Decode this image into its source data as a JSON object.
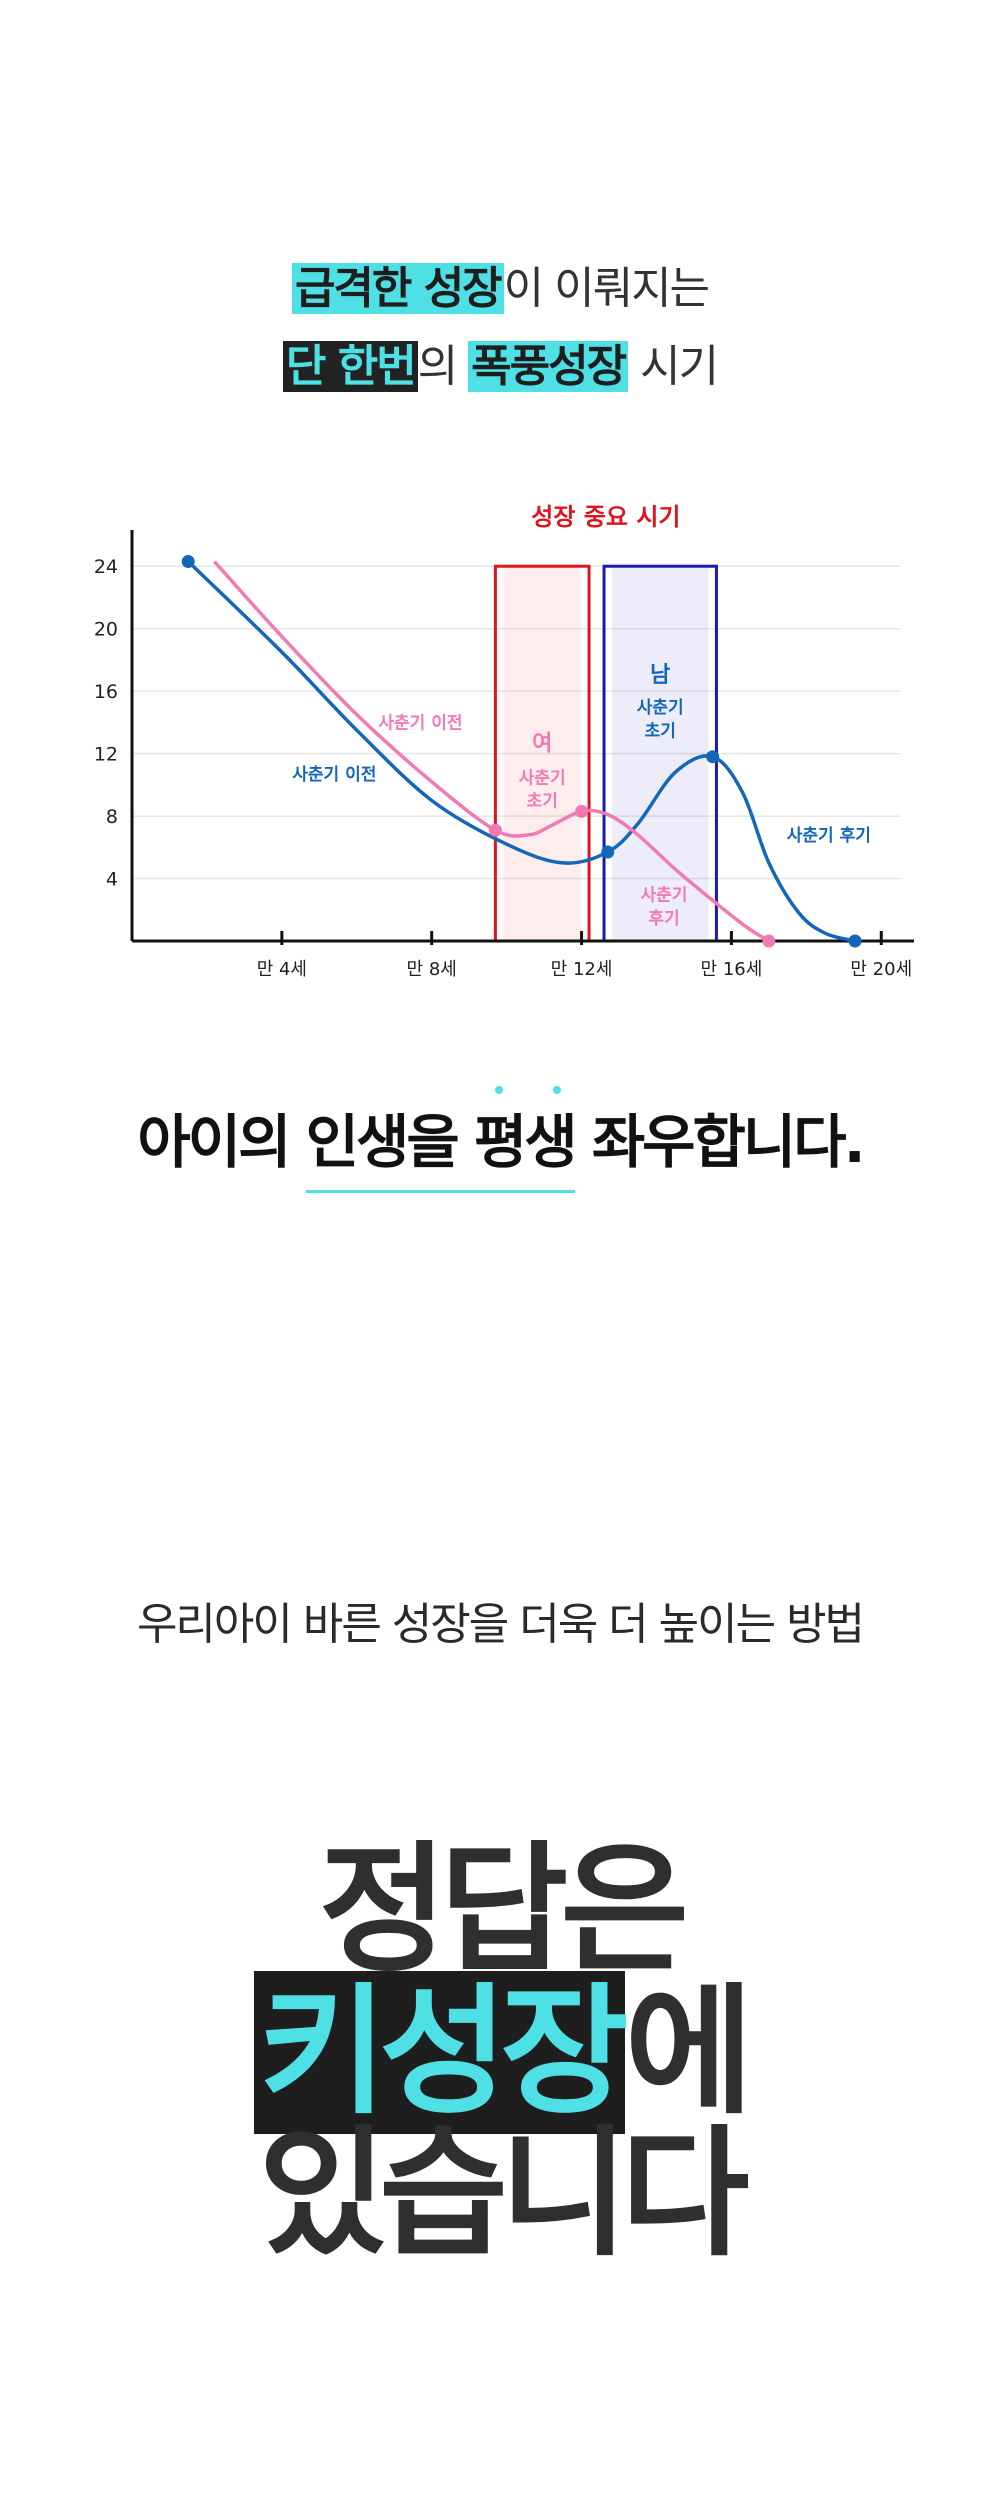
{
  "headline": {
    "line1_highlight": "급격한 성장",
    "line1_rest": "이 이뤄지는",
    "line2_highlight1": "단 한번",
    "line2_mid": "의",
    "line2_highlight2": "폭풍성장",
    "line2_rest": "시기"
  },
  "slogan": {
    "before": "아이의 ",
    "emphasis": "인생을 평생",
    "after": " 좌우합니다."
  },
  "method_text": "우리아이 바른 성장을  더욱 더 높이는 방법",
  "answer": {
    "line1": "정답은",
    "line2_key": "키성장",
    "line2_rest": "에",
    "line3": "있습니다"
  },
  "colors": {
    "accent": "#4ee0e4",
    "dark": "#1e1e1e",
    "female": "#f279b2",
    "male": "#1466b8",
    "critical": "#e0141e",
    "male_box": "#1a1ab0"
  },
  "chart_data": {
    "type": "line",
    "title": "성장 중요 시기",
    "xlabel": "",
    "ylabel": "",
    "xlim": [
      0,
      20.5
    ],
    "ylim": [
      0,
      26
    ],
    "x_ticks": [
      4,
      8,
      12,
      16,
      20
    ],
    "x_tick_labels": [
      "만 4세",
      "만 8세",
      "만 12세",
      "만 16세",
      "만 20세"
    ],
    "y_ticks": [
      4,
      8,
      12,
      16,
      20,
      24
    ],
    "y_tick_labels": [
      "4",
      "8",
      "12",
      "16",
      "20",
      "24"
    ],
    "grid": true,
    "series": [
      {
        "name": "남",
        "color": "#1466b8",
        "points": [
          [
            1.5,
            24.3
          ],
          [
            4,
            18.5
          ],
          [
            6,
            13.5
          ],
          [
            8,
            9
          ],
          [
            10,
            6.2
          ],
          [
            11.5,
            5
          ],
          [
            12.7,
            5.7
          ],
          [
            13.5,
            7.5
          ],
          [
            14.5,
            10.8
          ],
          [
            15.5,
            11.8
          ],
          [
            16.3,
            9.5
          ],
          [
            17,
            5
          ],
          [
            17.8,
            1.8
          ],
          [
            18.5,
            0.5
          ],
          [
            19.3,
            0
          ]
        ],
        "markers": [
          [
            1.5,
            24.3
          ],
          [
            12.7,
            5.7
          ],
          [
            15.5,
            11.8
          ],
          [
            19.3,
            0
          ]
        ]
      },
      {
        "name": "여",
        "color": "#f279b2",
        "points": [
          [
            2.2,
            24.3
          ],
          [
            4,
            19.5
          ],
          [
            6,
            14.5
          ],
          [
            8,
            10.2
          ],
          [
            9.7,
            7.1
          ],
          [
            10.6,
            6.8
          ],
          [
            11.2,
            7.4
          ],
          [
            12,
            8.3
          ],
          [
            12.7,
            8.1
          ],
          [
            13.5,
            6.8
          ],
          [
            14.5,
            4.6
          ],
          [
            15.5,
            2.6
          ],
          [
            16.4,
            0.9
          ],
          [
            17,
            0
          ]
        ],
        "markers": [
          [
            9.7,
            7.1
          ],
          [
            12,
            8.3
          ],
          [
            17,
            0
          ]
        ]
      }
    ],
    "periods": [
      {
        "name": "여 사춘기 초기",
        "x_start": 9.7,
        "x_end": 12.2,
        "color": "#e0141e"
      },
      {
        "name": "남 사춘기 초기",
        "x_start": 12.6,
        "x_end": 15.6,
        "color": "#1a1ab0"
      }
    ],
    "annotations": [
      {
        "text": "사춘기 이전",
        "x": 7.7,
        "y": 13.6,
        "color": "#f279b2"
      },
      {
        "text": "사춘기 이전",
        "x": 5.4,
        "y": 10.3,
        "color": "#1466b8"
      },
      {
        "text": "여",
        "x": 10.95,
        "y": 12.2,
        "color": "#f279b2"
      },
      {
        "text": "사춘기",
        "x": 10.95,
        "y": 10.1,
        "color": "#f279b2"
      },
      {
        "text": "초기",
        "x": 10.95,
        "y": 8.6,
        "color": "#f279b2"
      },
      {
        "text": "남",
        "x": 14.1,
        "y": 16.6,
        "color": "#1466b8"
      },
      {
        "text": "사춘기",
        "x": 14.1,
        "y": 14.6,
        "color": "#1466b8"
      },
      {
        "text": "초기",
        "x": 14.1,
        "y": 13.1,
        "color": "#1466b8"
      },
      {
        "text": "사춘기 후기",
        "x": 18.6,
        "y": 6.4,
        "color": "#1466b8"
      },
      {
        "text": "사춘기",
        "x": 14.2,
        "y": 2.6,
        "color": "#f279b2"
      },
      {
        "text": "후기",
        "x": 14.2,
        "y": 1.1,
        "color": "#f279b2"
      }
    ]
  }
}
